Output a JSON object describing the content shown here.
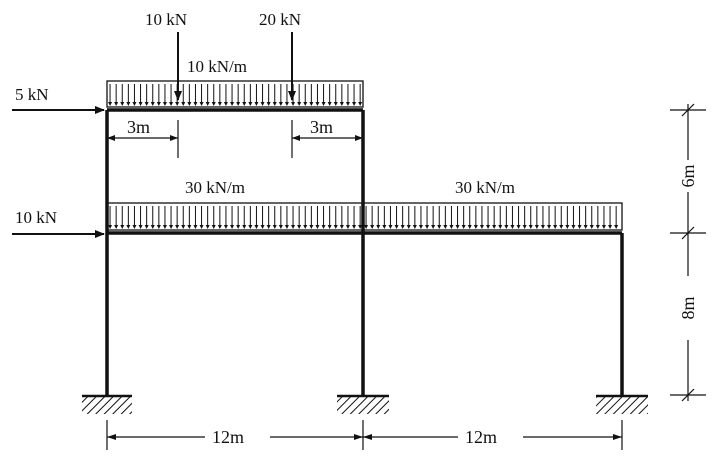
{
  "diagram": {
    "colors": {
      "ink": "#111111",
      "background": "#ffffff"
    },
    "point_loads": {
      "top_left": "10 kN",
      "top_right": "20 kN",
      "roof_horizontal": "5 kN",
      "floor_horizontal": "10 kN"
    },
    "distributed_loads": {
      "roof": "10 kN/m",
      "floor_left": "30 kN/m",
      "floor_right": "30 kN/m"
    },
    "dimensions": {
      "roof_offset_left": "3m",
      "roof_offset_right": "3m",
      "upper_storey_height": "6m",
      "lower_storey_height": "8m",
      "left_bay": "12m",
      "right_bay": "12m"
    }
  }
}
